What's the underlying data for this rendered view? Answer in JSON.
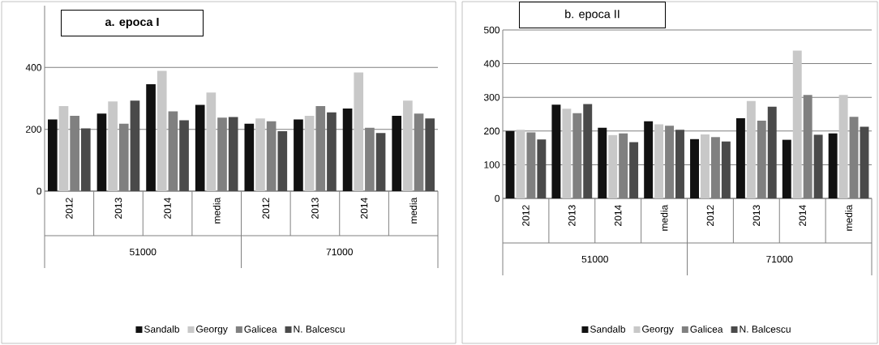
{
  "chart_data": [
    {
      "type": "bar",
      "title": "a.   epoca I",
      "categories": [
        "2012",
        "2013",
        "2014",
        "media",
        "2012",
        "2013",
        "2014",
        "media"
      ],
      "annotations": [
        "51000",
        "71000"
      ],
      "series": [
        {
          "name": "Sandalb",
          "color": "#111111",
          "values": [
            232,
            251,
            346,
            279,
            218,
            232,
            267,
            244
          ]
        },
        {
          "name": "Georgy",
          "color": "#c8c8c8",
          "values": [
            275,
            290,
            389,
            319,
            235,
            244,
            384,
            293
          ]
        },
        {
          "name": "Galicea",
          "color": "#808080",
          "values": [
            244,
            218,
            258,
            238,
            226,
            275,
            205,
            251
          ]
        },
        {
          "name": "N. Balcescu",
          "color": "#4a4a4a",
          "values": [
            203,
            293,
            229,
            240,
            194,
            255,
            188,
            235
          ]
        }
      ],
      "ylim": [
        0,
        600
      ],
      "yticks": [
        0,
        200,
        400
      ],
      "grid": "y",
      "legend": "bottom"
    },
    {
      "type": "bar",
      "title": "b. epoca II",
      "categories": [
        "2012",
        "2013",
        "2014",
        "media",
        "2012",
        "2013",
        "2014",
        "media"
      ],
      "annotations": [
        "51000",
        "71000"
      ],
      "series": [
        {
          "name": "Sandalb",
          "color": "#111111",
          "values": [
            200,
            278,
            210,
            229,
            176,
            238,
            174,
            193
          ]
        },
        {
          "name": "Georgy",
          "color": "#c8c8c8",
          "values": [
            204,
            266,
            188,
            220,
            190,
            289,
            439,
            307
          ]
        },
        {
          "name": "Galicea",
          "color": "#808080",
          "values": [
            196,
            253,
            193,
            216,
            182,
            231,
            307,
            242
          ]
        },
        {
          "name": "N. Balcescu",
          "color": "#4a4a4a",
          "values": [
            175,
            280,
            167,
            204,
            169,
            272,
            189,
            213
          ]
        }
      ],
      "ylim": [
        0,
        500
      ],
      "yticks": [
        0,
        100,
        200,
        300,
        400,
        500
      ],
      "grid": "y",
      "legend": "bottom"
    }
  ]
}
